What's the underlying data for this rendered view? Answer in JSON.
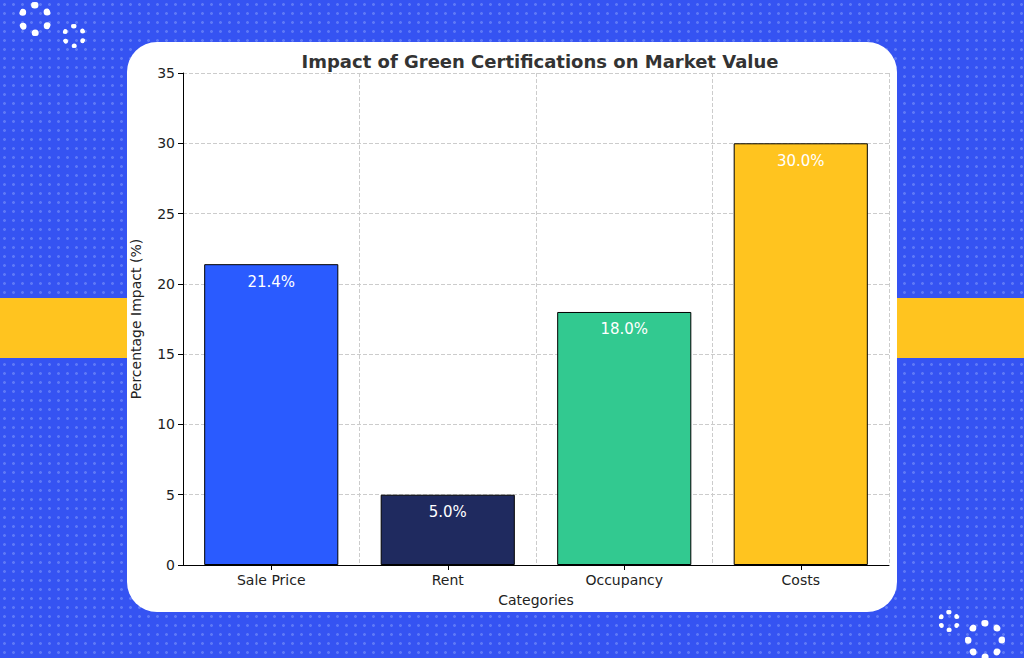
{
  "chart_data": {
    "type": "bar",
    "title": "Impact of Green Certifications on Market Value",
    "x_label": "Categories",
    "y_label": "Percentage Impact (%)",
    "categories": [
      "Sale Price",
      "Rent",
      "Occupancy",
      "Costs"
    ],
    "values": [
      21.4,
      5.0,
      18.0,
      30.0
    ],
    "value_labels": [
      "21.4%",
      "5.0%",
      "18.0%",
      "30.0%"
    ],
    "colors": [
      "#2a5bff",
      "#1f2a5f",
      "#32c990",
      "#ffc41f"
    ],
    "ylim": [
      0,
      35
    ],
    "yticks": [
      0,
      5,
      10,
      15,
      20,
      25,
      30,
      35
    ],
    "grid": true,
    "data_labels": true
  }
}
